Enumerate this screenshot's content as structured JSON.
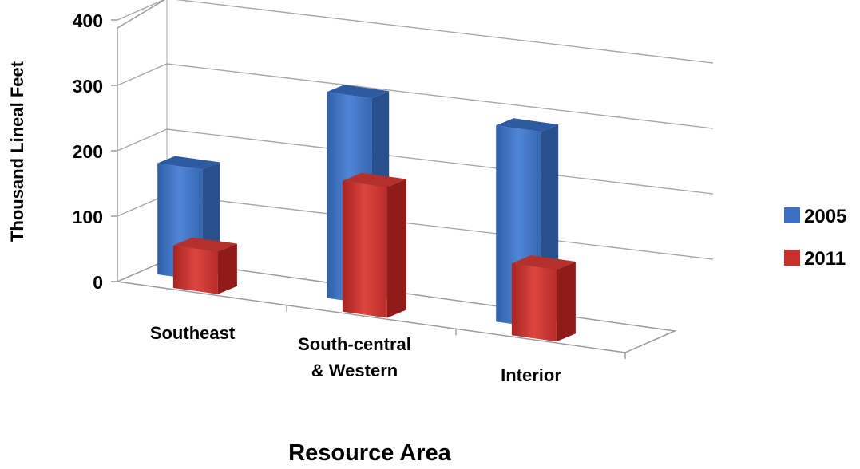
{
  "chart_data": {
    "type": "bar",
    "title": "",
    "xlabel": "Resource Area",
    "ylabel": "Thousand Lineal Feet",
    "ylim": [
      0,
      400
    ],
    "yticks": [
      "0",
      "100",
      "200",
      "300",
      "400"
    ],
    "categories": [
      [
        "Southeast"
      ],
      [
        "South-central",
        "& Western"
      ],
      [
        "Interior"
      ]
    ],
    "series": [
      {
        "name": "2005",
        "color": "#3a6fc4",
        "values": [
          170,
          315,
          300
        ]
      },
      {
        "name": "2011",
        "color": "#c9302c",
        "values": [
          65,
          200,
          110
        ]
      }
    ],
    "legend_position": "right",
    "grid": true,
    "style": "3d-clustered-column"
  }
}
